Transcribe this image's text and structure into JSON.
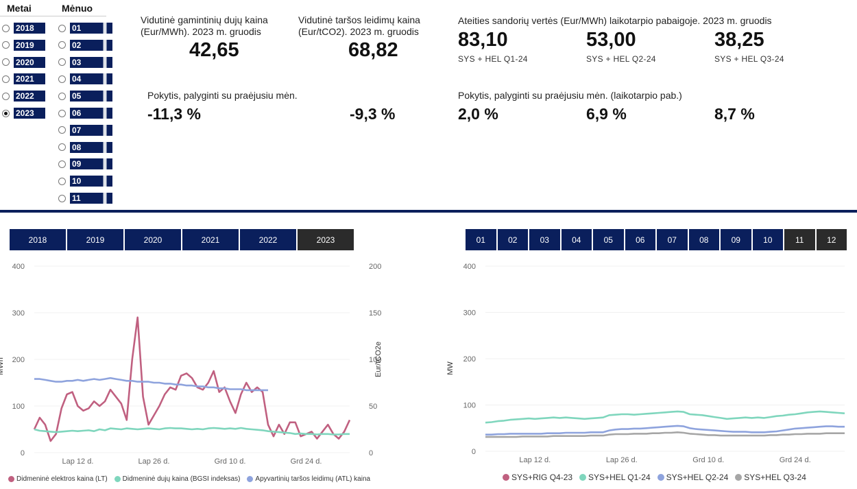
{
  "slicers": {
    "year_header": "Metai",
    "month_header": "Mėnuo",
    "years": [
      {
        "label": "2018",
        "selected": false
      },
      {
        "label": "2019",
        "selected": false
      },
      {
        "label": "2020",
        "selected": false
      },
      {
        "label": "2021",
        "selected": false
      },
      {
        "label": "2022",
        "selected": false
      },
      {
        "label": "2023",
        "selected": true
      }
    ],
    "months": [
      "01",
      "02",
      "03",
      "04",
      "05",
      "06",
      "07",
      "08",
      "09",
      "10",
      "11"
    ]
  },
  "kpis": {
    "gas": {
      "title_line1": "Vidutinė gamintinių dujų kaina",
      "title_line2": "(Eur/MWh). 2023 m. gruodis",
      "value": "42,65"
    },
    "carbon": {
      "title_line1": "Vidutinė taršos leidimų kaina",
      "title_line2": "(Eur/tCO2). 2023 m. gruodis",
      "value": "68,82"
    },
    "futures_title": "Ateities sandorių vertės (Eur/MWh) laikotarpio pabaigoje. 2023 m. gruodis",
    "futures": [
      {
        "value": "83,10",
        "label": "SYS + HEL Q1-24"
      },
      {
        "value": "53,00",
        "label": "SYS + HEL Q2-24"
      },
      {
        "value": "38,25",
        "label": "SYS + HEL Q3-24"
      }
    ],
    "change_title_left": "Pokytis, palyginti su praėjusiu mėn.",
    "change_gas": "-11,3 %",
    "change_carbon": "-9,3 %",
    "change_title_right": "Pokytis, palyginti su praėjusiu mėn. (laikotarpio pab.)",
    "change_futures": [
      "2,0 %",
      "6,9 %",
      "8,7 %"
    ]
  },
  "year_tabs": [
    {
      "label": "2018",
      "active": false
    },
    {
      "label": "2019",
      "active": false
    },
    {
      "label": "2020",
      "active": false
    },
    {
      "label": "2021",
      "active": false
    },
    {
      "label": "2022",
      "active": false
    },
    {
      "label": "2023",
      "active": true
    }
  ],
  "month_tabs": [
    {
      "label": "01",
      "active": false
    },
    {
      "label": "02",
      "active": false
    },
    {
      "label": "03",
      "active": false
    },
    {
      "label": "04",
      "active": false
    },
    {
      "label": "05",
      "active": false
    },
    {
      "label": "06",
      "active": false
    },
    {
      "label": "07",
      "active": false
    },
    {
      "label": "08",
      "active": false
    },
    {
      "label": "09",
      "active": false
    },
    {
      "label": "10",
      "active": false
    },
    {
      "label": "11",
      "active": true
    },
    {
      "label": "12",
      "active": true
    }
  ],
  "colors": {
    "navy": "#0a1f5c",
    "dark_tab": "#2b2b2b",
    "electricity": "#c06080",
    "gas": "#7fd6bd",
    "carbon": "#8ea3dd",
    "q1": "#7fd6bd",
    "q2": "#8ea3dd",
    "q3": "#a6a6a6",
    "q4": "#c06080"
  },
  "chart_data": [
    {
      "type": "line",
      "title": "",
      "ylabel": "MWh",
      "y2label": "Eur/tCO2e",
      "ylim": [
        0,
        400
      ],
      "y2lim": [
        0,
        200
      ],
      "yticks": [
        "0",
        "100",
        "200",
        "300",
        "400"
      ],
      "y2ticks": [
        "0",
        "50",
        "100",
        "150",
        "200"
      ],
      "xtick_labels": [
        "Lap 12 d.",
        "Lap 26 d.",
        "Grd 10 d.",
        "Grd 24 d."
      ],
      "xtick_index": [
        8,
        22,
        36,
        50
      ],
      "series": [
        {
          "name": "Didmeninė elektros kaina (LT)",
          "axis": "left",
          "color": "#c06080",
          "values": [
            50,
            75,
            60,
            25,
            40,
            95,
            125,
            130,
            100,
            90,
            95,
            110,
            100,
            110,
            135,
            120,
            105,
            70,
            200,
            290,
            120,
            60,
            80,
            100,
            125,
            140,
            135,
            165,
            170,
            160,
            140,
            135,
            150,
            175,
            130,
            140,
            110,
            85,
            125,
            150,
            130,
            140,
            130,
            60,
            35,
            60,
            40,
            65,
            65,
            35,
            40,
            45,
            30,
            45,
            60,
            40,
            30,
            45,
            70
          ]
        },
        {
          "name": "Didmeninė dujų kaina (BGSI indeksas)",
          "axis": "left",
          "color": "#7fd6bd",
          "values": [
            50,
            47,
            46,
            45,
            44,
            45,
            46,
            47,
            46,
            47,
            48,
            46,
            50,
            48,
            52,
            51,
            50,
            52,
            51,
            50,
            51,
            52,
            51,
            50,
            52,
            53,
            52,
            52,
            51,
            50,
            51,
            50,
            52,
            53,
            52,
            51,
            52,
            51,
            53,
            51,
            50,
            49,
            48,
            46,
            45,
            44,
            43,
            42,
            40,
            41,
            40,
            40,
            39,
            40,
            40,
            39,
            39,
            40,
            40
          ]
        },
        {
          "name": "Apyvartinių taršos leidimų (ATL) kaina",
          "axis": "right",
          "color": "#8ea3dd",
          "values": [
            79,
            79,
            78,
            77,
            76,
            76,
            77,
            77,
            78,
            77,
            78,
            79,
            78,
            79,
            80,
            79,
            78,
            77,
            77,
            76,
            76,
            76,
            75,
            75,
            74,
            74,
            73,
            73,
            72,
            72,
            71,
            71,
            70,
            70,
            69,
            69,
            68,
            68,
            68,
            67,
            67,
            67,
            67,
            67
          ]
        }
      ]
    },
    {
      "type": "line",
      "title": "",
      "ylabel": "MW",
      "ylim": [
        0,
        400
      ],
      "yticks": [
        "0",
        "100",
        "200",
        "300",
        "400"
      ],
      "xtick_labels": [
        "Lap 12 d.",
        "Lap 26 d.",
        "Grd 10 d.",
        "Grd 24 d."
      ],
      "xtick_index": [
        8,
        22,
        36,
        50
      ],
      "series": [
        {
          "name": "SYS+RIG Q4-23",
          "color": "#c06080",
          "values": []
        },
        {
          "name": "SYS+HEL Q1-24",
          "color": "#7fd6bd",
          "values": [
            62,
            63,
            65,
            66,
            68,
            69,
            70,
            71,
            70,
            71,
            72,
            73,
            72,
            73,
            72,
            71,
            70,
            71,
            72,
            73,
            78,
            79,
            80,
            80,
            79,
            80,
            81,
            82,
            83,
            84,
            85,
            86,
            85,
            80,
            79,
            78,
            76,
            74,
            72,
            70,
            71,
            72,
            73,
            72,
            73,
            72,
            74,
            76,
            77,
            79,
            80,
            82,
            84,
            85,
            86,
            85,
            84,
            83,
            82
          ]
        },
        {
          "name": "SYS+HEL Q2-24",
          "color": "#8ea3dd",
          "values": [
            36,
            36,
            37,
            37,
            38,
            38,
            38,
            38,
            38,
            38,
            39,
            39,
            39,
            40,
            40,
            40,
            40,
            41,
            41,
            41,
            45,
            47,
            48,
            48,
            49,
            49,
            50,
            51,
            52,
            53,
            54,
            55,
            54,
            50,
            48,
            47,
            46,
            45,
            44,
            43,
            42,
            42,
            42,
            41,
            41,
            41,
            42,
            43,
            45,
            47,
            49,
            50,
            51,
            52,
            53,
            54,
            54,
            53,
            53
          ]
        },
        {
          "name": "SYS+HEL Q3-24",
          "color": "#a6a6a6",
          "values": [
            31,
            31,
            31,
            31,
            31,
            31,
            32,
            32,
            32,
            32,
            32,
            33,
            33,
            33,
            33,
            33,
            33,
            34,
            34,
            34,
            36,
            37,
            37,
            37,
            38,
            38,
            38,
            39,
            39,
            40,
            40,
            41,
            40,
            38,
            37,
            36,
            35,
            35,
            34,
            34,
            34,
            34,
            34,
            34,
            34,
            34,
            35,
            35,
            36,
            36,
            37,
            37,
            38,
            38,
            38,
            39,
            39,
            39,
            39
          ]
        }
      ]
    }
  ]
}
